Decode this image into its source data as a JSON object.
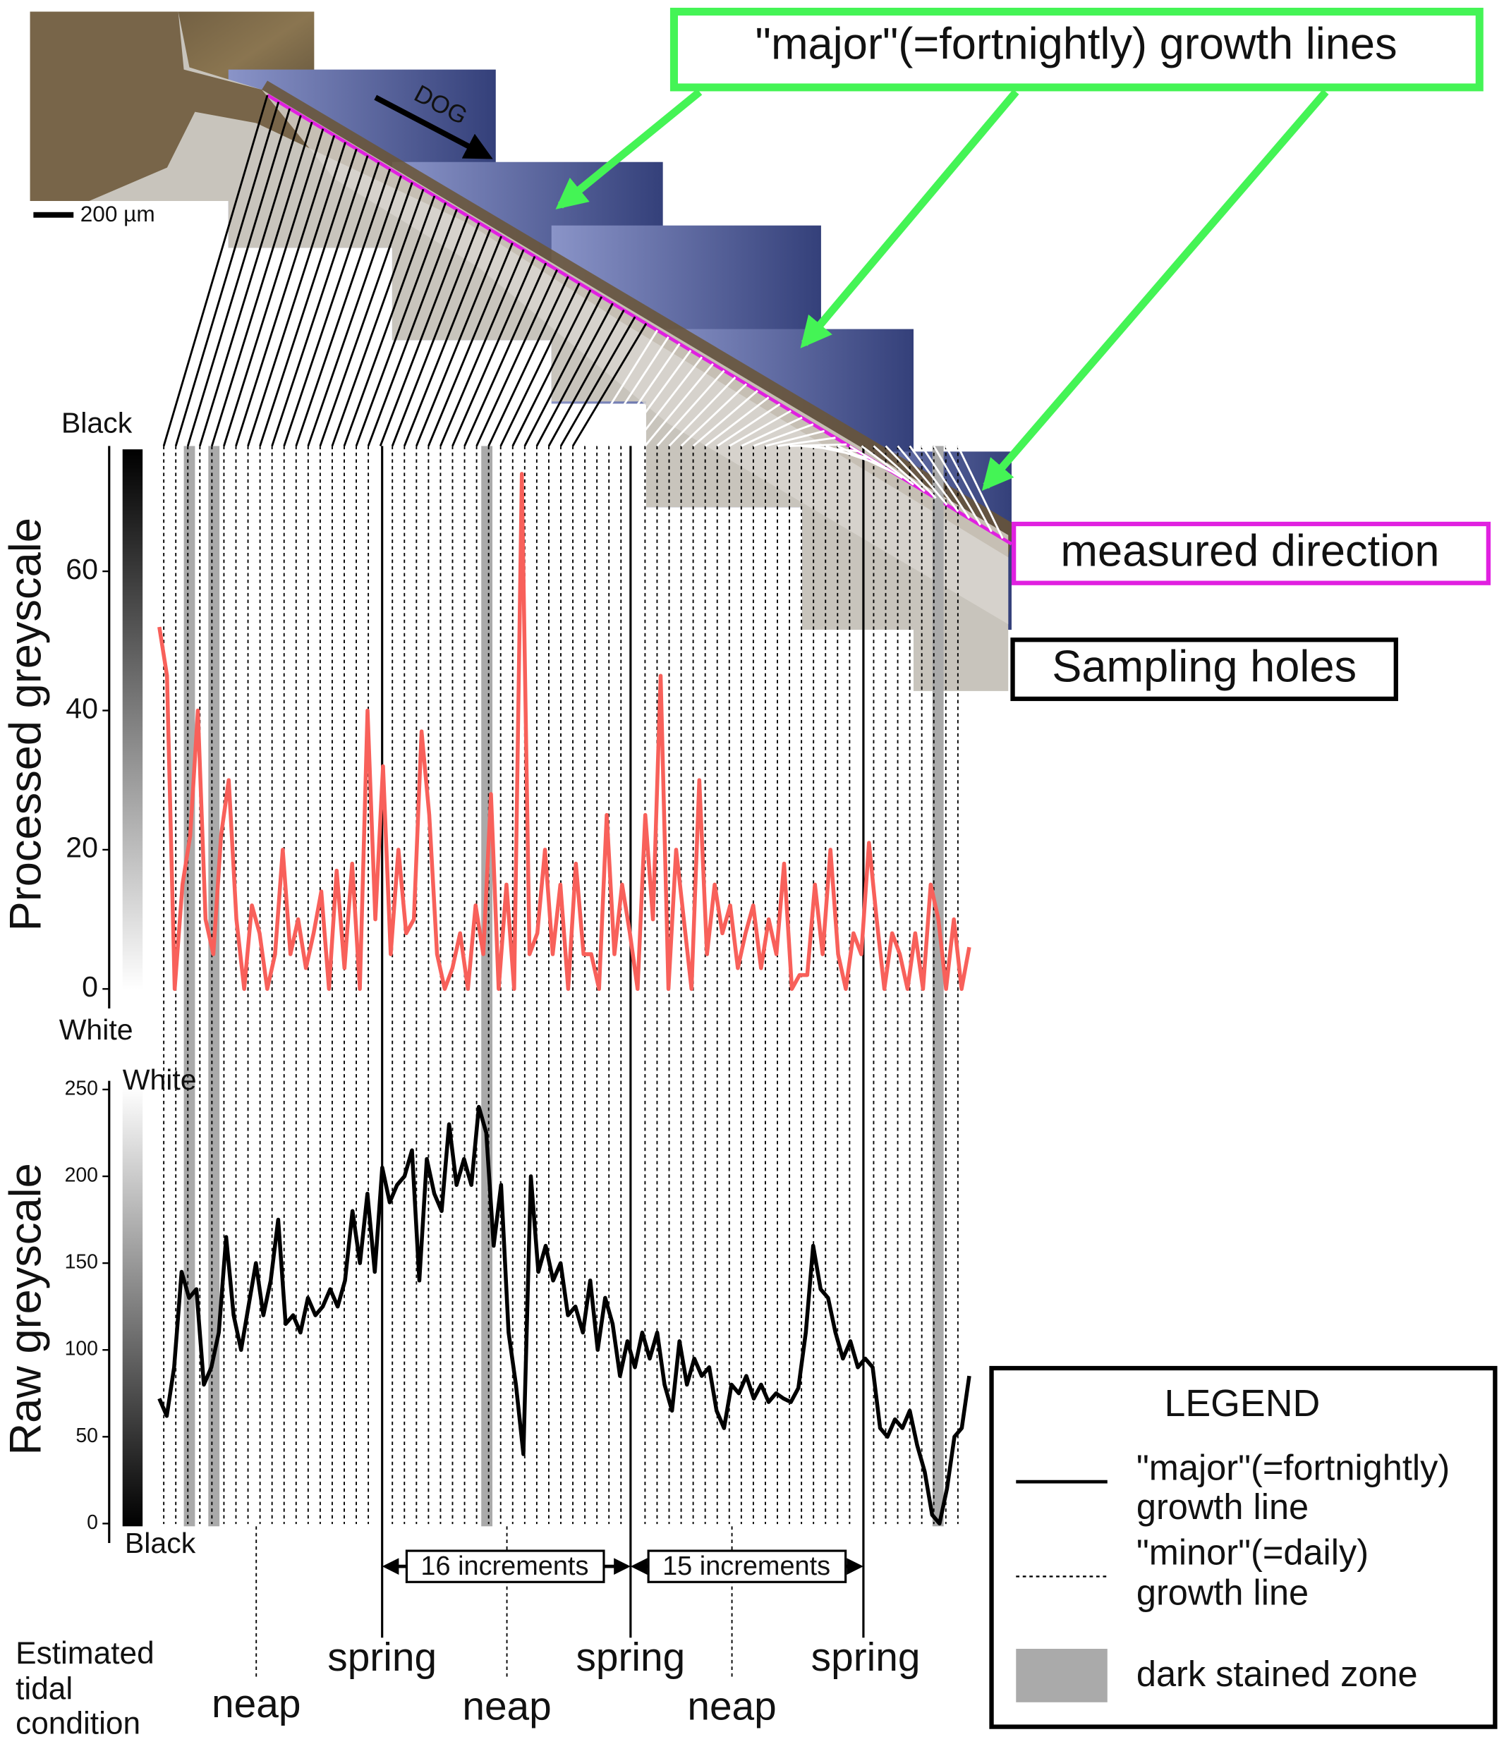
{
  "chart_data": [
    {
      "type": "line",
      "y_label": "Processed greyscale",
      "colorbar_top": "Black",
      "colorbar_bottom": "White",
      "ylim": [
        -2,
        78
      ],
      "yticks": [
        0,
        20,
        40,
        60
      ],
      "color": "#f8605a",
      "values": [
        52,
        45,
        0,
        15,
        22,
        40,
        10,
        5,
        22,
        30,
        10,
        0,
        12,
        8,
        0,
        5,
        20,
        5,
        10,
        3,
        8,
        14,
        0,
        17,
        3,
        18,
        0,
        40,
        10,
        32,
        5,
        20,
        8,
        10,
        37,
        25,
        5,
        0,
        3,
        8,
        0,
        12,
        5,
        28,
        0,
        15,
        0,
        74,
        5,
        8,
        20,
        5,
        15,
        0,
        18,
        5,
        5,
        0,
        25,
        5,
        15,
        8,
        0,
        25,
        10,
        45,
        0,
        20,
        10,
        0,
        30,
        5,
        15,
        8,
        12,
        3,
        8,
        12,
        3,
        10,
        5,
        18,
        0,
        2,
        2,
        15,
        5,
        20,
        5,
        0,
        8,
        5,
        21,
        10,
        0,
        8,
        5,
        0,
        8,
        0,
        15,
        10,
        0,
        10,
        0,
        6
      ]
    },
    {
      "type": "line",
      "y_label": "Raw greyscale",
      "colorbar_top": "White",
      "colorbar_bottom": "Black",
      "ylim": [
        -8,
        255
      ],
      "yticks": [
        0,
        50,
        100,
        150,
        200,
        250
      ],
      "color": "#000000",
      "values": [
        72,
        62,
        90,
        145,
        130,
        135,
        80,
        90,
        110,
        165,
        120,
        100,
        125,
        150,
        120,
        140,
        175,
        115,
        120,
        110,
        130,
        120,
        125,
        135,
        125,
        140,
        180,
        150,
        190,
        145,
        205,
        185,
        195,
        200,
        215,
        140,
        210,
        190,
        180,
        230,
        195,
        210,
        195,
        240,
        225,
        160,
        195,
        110,
        80,
        40,
        200,
        145,
        160,
        140,
        150,
        120,
        125,
        110,
        140,
        100,
        130,
        115,
        85,
        105,
        90,
        110,
        95,
        110,
        80,
        65,
        105,
        80,
        95,
        85,
        90,
        65,
        55,
        80,
        75,
        85,
        72,
        80,
        70,
        75,
        72,
        70,
        78,
        110,
        160,
        135,
        130,
        110,
        95,
        105,
        90,
        95,
        90,
        55,
        50,
        60,
        55,
        65,
        45,
        30,
        5,
        0,
        20,
        50,
        55,
        85
      ]
    }
  ],
  "figure": {
    "major_label": "\"major\"(=fortnightly) growth lines",
    "direction_label": "measured direction",
    "sampling_label": "Sampling holes",
    "dog": "DOG",
    "scale_bar": "200 µm",
    "increments": [
      "16 increments",
      "15 increments"
    ],
    "tidal_title": [
      "Estimated",
      "tidal",
      "condition"
    ],
    "spring": [
      "spring",
      "spring",
      "spring"
    ],
    "neap": [
      "neap",
      "neap",
      "neap"
    ],
    "legend": {
      "title": "LEGEND",
      "major": [
        "\"major\"(=fortnightly)",
        "growth line"
      ],
      "minor": [
        "\"minor\"(=daily)",
        "growth line"
      ],
      "stained": "dark stained zone"
    }
  }
}
